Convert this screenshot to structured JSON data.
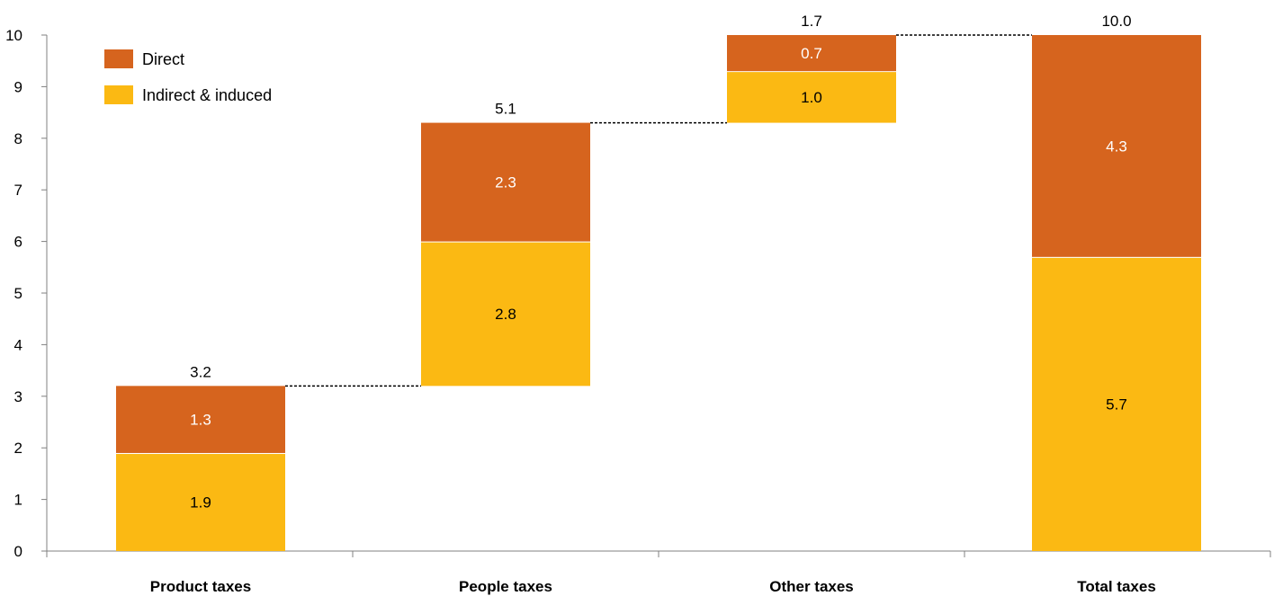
{
  "chart_data": {
    "type": "bar",
    "subtype": "waterfall-stacked",
    "title": "",
    "xlabel": "",
    "ylabel": "",
    "ylim": [
      0,
      10
    ],
    "yticks": [
      0,
      1,
      2,
      3,
      4,
      5,
      6,
      7,
      8,
      9,
      10
    ],
    "grid": false,
    "legend_position": "top-left",
    "categories": [
      "Product taxes",
      "People taxes",
      "Other taxes",
      "Total taxes"
    ],
    "bases": [
      0,
      3.2,
      8.3,
      0
    ],
    "totals": [
      "3.2",
      "5.1",
      "1.7",
      "10.0"
    ],
    "series": [
      {
        "name": "Indirect & induced",
        "color": "#fbb913",
        "label_color": "#000000",
        "values": [
          1.9,
          2.8,
          1.0,
          5.7
        ],
        "labels": [
          "1.9",
          "2.8",
          "1.0",
          "5.7"
        ]
      },
      {
        "name": "Direct",
        "color": "#d6641e",
        "label_color": "#ffffff",
        "values": [
          1.3,
          2.3,
          0.7,
          4.3
        ],
        "labels": [
          "1.3",
          "2.3",
          "0.7",
          "4.3"
        ]
      }
    ],
    "legend_order": [
      "Direct",
      "Indirect & induced"
    ],
    "connectors": "dotted"
  }
}
